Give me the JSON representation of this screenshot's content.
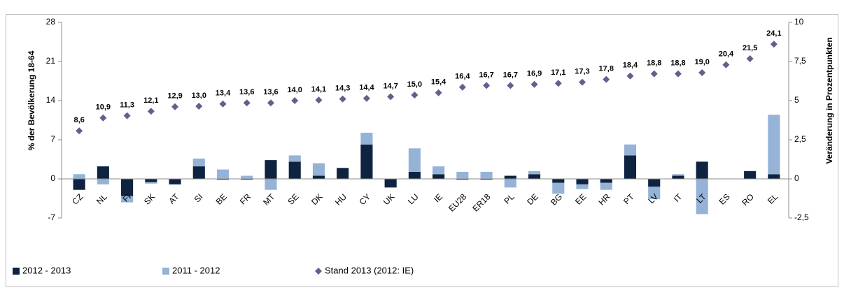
{
  "chart_data": {
    "type": "bar",
    "y_label": "% der Bevölkerung 18-64",
    "y2_label": "Veränderung in Prozentpunkten",
    "categories": [
      "CZ",
      "NL",
      "FI",
      "SK",
      "AT",
      "SI",
      "BE",
      "FR",
      "MT",
      "SE",
      "DK",
      "HU",
      "CY",
      "UK",
      "LU",
      "IE",
      "EU28",
      "ER18",
      "PL",
      "DE",
      "BG",
      "EE",
      "HR",
      "PT",
      "LV",
      "IT",
      "LT",
      "ES",
      "RO",
      "EL"
    ],
    "ylim": [
      -7,
      28
    ],
    "yticks": [
      -7,
      0,
      7,
      14,
      21,
      28
    ],
    "y2lim": [
      -2.5,
      10
    ],
    "y2ticks": [
      {
        "value": -2.5,
        "label": "-2,5"
      },
      0,
      {
        "value": 2.5,
        "label": "2,5"
      },
      5,
      {
        "value": 7.5,
        "label": "7,5"
      },
      10
    ],
    "stacked": true,
    "series": [
      {
        "name": "2012 - 2013",
        "type": "bar",
        "axis": "y2",
        "color": "#0e2340",
        "values": [
          -0.7,
          0.8,
          -1.1,
          -0.2,
          -0.35,
          0.8,
          -0.05,
          -0.05,
          1.2,
          1.1,
          0.2,
          0.7,
          2.2,
          -0.55,
          0.45,
          0.3,
          -0.05,
          -0.05,
          0.2,
          0.3,
          -0.25,
          -0.35,
          -0.25,
          1.5,
          -0.5,
          0.2,
          1.1,
          0,
          0.5,
          0.3
        ]
      },
      {
        "name": "2011 - 2012",
        "type": "bar",
        "axis": "y2",
        "color": "#95b3d7",
        "values": [
          0.3,
          -0.35,
          -0.4,
          -0.1,
          0,
          0.5,
          0.6,
          0.2,
          -0.7,
          0.4,
          0.8,
          0,
          0.75,
          0,
          1.5,
          0.5,
          0.45,
          0.45,
          -0.55,
          0.2,
          -0.7,
          -0.3,
          -0.45,
          0.7,
          -0.8,
          0.1,
          -2.25,
          0,
          0,
          3.8
        ]
      },
      {
        "name": "Stand 2013 (2012: IE)",
        "type": "scatter",
        "axis": "y",
        "color": "#6b5a8e",
        "values": [
          8.6,
          10.9,
          11.3,
          12.1,
          12.9,
          13.0,
          13.4,
          13.6,
          13.6,
          14.0,
          14.1,
          14.3,
          14.4,
          14.7,
          15.0,
          15.4,
          16.4,
          16.7,
          16.7,
          16.9,
          17.1,
          17.3,
          17.8,
          18.4,
          18.8,
          18.8,
          19.0,
          20.4,
          21.5,
          24.1
        ],
        "value_labels": [
          "8,6",
          "10,9",
          "11,3",
          "12,1",
          "12,9",
          "13,0",
          "13,4",
          "13,6",
          "13,6",
          "14,0",
          "14,1",
          "14,3",
          "14,4",
          "14,7",
          "15,0",
          "15,4",
          "16,4",
          "16,7",
          "16,7",
          "16,9",
          "17,1",
          "17,3",
          "17,8",
          "18,4",
          "18,8",
          "18,8",
          "19,0",
          "20,4",
          "21,5",
          "24,1"
        ]
      }
    ]
  }
}
